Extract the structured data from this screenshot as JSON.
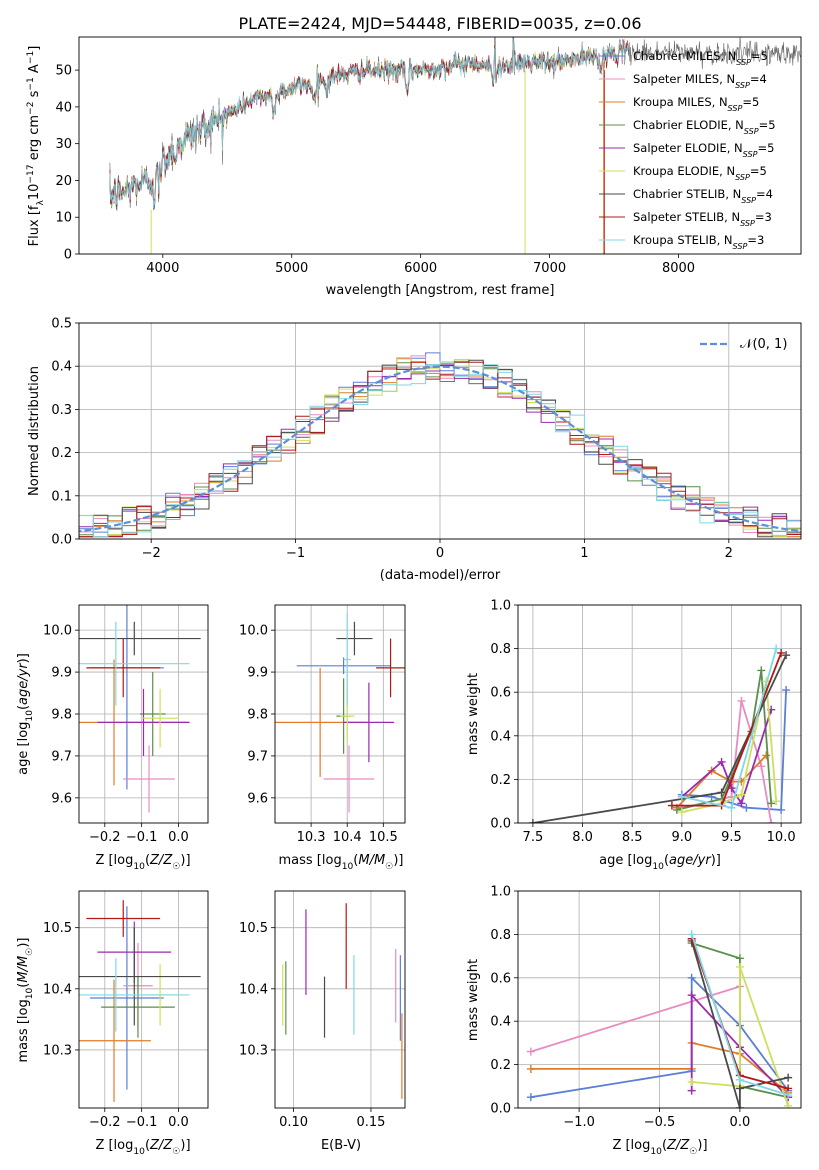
{
  "colors": {
    "Chabrier MILES": "#5b7fd6",
    "Salpeter MILES": "#e88cc0",
    "Kroupa MILES": "#e07b2a",
    "Chabrier ELODIE": "#5a8f4a",
    "Salpeter ELODIE": "#9a2bb0",
    "Kroupa ELODIE": "#cde05a",
    "Chabrier STELIB": "#4a4a4a",
    "Salpeter STELIB": "#b11818",
    "Kroupa STELIB": "#7fd8e6",
    "normal": "#5b8fd9",
    "grid": "#b0b0b0",
    "data": "#666666"
  },
  "chart_data": [
    {
      "id": "spectrum",
      "type": "line",
      "title": "PLATE=2424, MJD=54448, FIBERID=0035, z=0.06",
      "xlabel": "wavelength [Angstrom, rest frame]",
      "ylabel": "Flux [f_λ10^-17 erg cm^-2 s^-1 A^-1]",
      "xlim": [
        3350,
        8950
      ],
      "ylim": [
        0,
        59
      ],
      "xticks": [
        4000,
        5000,
        6000,
        7000,
        8000
      ],
      "yticks": [
        0,
        10,
        20,
        30,
        40,
        50
      ],
      "grid": false,
      "legend": "upper right",
      "continuum": {
        "x": [
          3600,
          3700,
          3800,
          3900,
          4000,
          4100,
          4200,
          4300,
          4400,
          4500,
          4600,
          4700,
          4800,
          4900,
          5000,
          5200,
          5400,
          5600,
          5800,
          6000,
          6200,
          6400,
          6600,
          6800,
          7000,
          7200,
          7400,
          7600
        ],
        "y": [
          16,
          17,
          19,
          20,
          25,
          30,
          32,
          34,
          36,
          38,
          40,
          42,
          43,
          44,
          45,
          47,
          49,
          50,
          50,
          50,
          51,
          52,
          51,
          52,
          52,
          53,
          54,
          55
        ]
      },
      "data_extent": [
        3590,
        8950
      ],
      "model_extent": [
        3590,
        7610
      ],
      "series": [
        {
          "name": "Chabrier MILES",
          "n_ssp": "5"
        },
        {
          "name": "Salpeter MILES",
          "n_ssp": "4"
        },
        {
          "name": "Kroupa MILES",
          "n_ssp": "5"
        },
        {
          "name": "Chabrier ELODIE",
          "n_ssp": "5"
        },
        {
          "name": "Salpeter ELODIE",
          "n_ssp": "5"
        },
        {
          "name": "Kroupa ELODIE",
          "n_ssp": "5"
        },
        {
          "name": "Chabrier STELIB",
          "n_ssp": "4"
        },
        {
          "name": "Salpeter STELIB",
          "n_ssp": "3"
        },
        {
          "name": "Kroupa STELIB",
          "n_ssp": "3"
        }
      ]
    },
    {
      "id": "residuals",
      "type": "step",
      "xlabel": "(data-model)/error",
      "ylabel": "Normed distribution",
      "xlim": [
        -2.5,
        2.5
      ],
      "ylim": [
        0,
        0.5
      ],
      "xticks": [
        -2,
        -1,
        0,
        1,
        2
      ],
      "yticks": [
        0.0,
        0.1,
        0.2,
        0.3,
        0.4,
        0.5
      ],
      "bin_width": 0.1,
      "grid": true,
      "legend": "upper right",
      "legend_label": "𝒩(0, 1)"
    },
    {
      "id": "age_vs_Z",
      "type": "errorbar",
      "xlabel": "Z [log10(Z/Z☉)]",
      "ylabel": "age [log10(age/yr)]",
      "xlim": [
        -0.27,
        0.08
      ],
      "ylim": [
        9.54,
        10.06
      ],
      "xticks": [
        -0.2,
        -0.1,
        0.0
      ],
      "yticks": [
        9.6,
        9.7,
        9.8,
        9.9,
        10.0
      ],
      "points": [
        {
          "series": "Chabrier MILES",
          "x": -0.14,
          "xerr": 0.1,
          "y": 9.91,
          "yerr": 0.29
        },
        {
          "series": "Salpeter MILES",
          "x": -0.08,
          "xerr": 0.07,
          "y": 9.645,
          "yerr": 0.08
        },
        {
          "series": "Kroupa MILES",
          "x": -0.175,
          "xerr": 0.2,
          "y": 9.78,
          "yerr": 0.15
        },
        {
          "series": "Chabrier ELODIE",
          "x": -0.07,
          "xerr": 0.035,
          "y": 9.8,
          "yerr": 0.1
        },
        {
          "series": "Salpeter ELODIE",
          "x": -0.095,
          "xerr": 0.125,
          "y": 9.78,
          "yerr": 0.08
        },
        {
          "series": "Kroupa ELODIE",
          "x": -0.05,
          "xerr": 0.05,
          "y": 9.79,
          "yerr": 0.07
        },
        {
          "series": "Chabrier STELIB",
          "x": -0.12,
          "xerr": 0.18,
          "y": 9.98,
          "yerr": 0.04
        },
        {
          "series": "Salpeter STELIB",
          "x": -0.15,
          "xerr": 0.1,
          "y": 9.91,
          "yerr": 0.07
        },
        {
          "series": "Kroupa STELIB",
          "x": -0.17,
          "xerr": 0.2,
          "y": 9.92,
          "yerr": 0.1
        }
      ]
    },
    {
      "id": "age_vs_mass",
      "type": "errorbar",
      "xlabel": "mass [log10(M/M☉)]",
      "ylabel": "",
      "xlim": [
        10.2,
        10.56
      ],
      "ylim": [
        9.54,
        10.06
      ],
      "xticks": [
        10.3,
        10.4,
        10.5
      ],
      "yticks": [
        9.6,
        9.7,
        9.8,
        9.9,
        10.0
      ],
      "points": [
        {
          "series": "Chabrier MILES",
          "x": 10.39,
          "xerr": 0.13,
          "y": 9.915,
          "yerr": 0.02
        },
        {
          "series": "Salpeter MILES",
          "x": 10.405,
          "xerr": 0.07,
          "y": 9.645,
          "yerr": 0.08
        },
        {
          "series": "Kroupa MILES",
          "x": 10.325,
          "xerr": 0.13,
          "y": 9.78,
          "yerr": 0.13
        },
        {
          "series": "Chabrier ELODIE",
          "x": 10.39,
          "xerr": 0.02,
          "y": 9.795,
          "yerr": 0.09
        },
        {
          "series": "Salpeter ELODIE",
          "x": 10.46,
          "xerr": 0.07,
          "y": 9.78,
          "yerr": 0.095
        },
        {
          "series": "Kroupa ELODIE",
          "x": 10.4,
          "xerr": 0.02,
          "y": 9.795,
          "yerr": 0.06
        },
        {
          "series": "Chabrier STELIB",
          "x": 10.42,
          "xerr": 0.05,
          "y": 9.98,
          "yerr": 0.04
        },
        {
          "series": "Salpeter STELIB",
          "x": 10.52,
          "xerr": 0.04,
          "y": 9.91,
          "yerr": 0.07
        },
        {
          "series": "Kroupa STELIB",
          "x": 10.4,
          "xerr": 0.01,
          "y": 9.93,
          "yerr": 0.11
        }
      ]
    },
    {
      "id": "weight_vs_age",
      "type": "line",
      "xlabel": "age [log10(age/yr)]",
      "ylabel": "mass weight",
      "xlim": [
        7.35,
        10.2
      ],
      "ylim": [
        0,
        1.0
      ],
      "xticks": [
        7.5,
        8.0,
        8.5,
        9.0,
        9.5,
        10.0
      ],
      "yticks": [
        0.0,
        0.2,
        0.4,
        0.6,
        0.8,
        1.0
      ],
      "grid": true,
      "series": [
        {
          "series": "Chabrier MILES",
          "x": [
            9.0,
            9.3,
            9.65,
            10.0,
            10.05
          ],
          "y": [
            0.13,
            0.12,
            0.07,
            0.06,
            0.61
          ]
        },
        {
          "series": "Salpeter MILES",
          "x": [
            9.0,
            9.5,
            9.6,
            9.8,
            9.9
          ],
          "y": [
            0.07,
            0.12,
            0.56,
            0.26,
            0.0
          ]
        },
        {
          "series": "Kroupa MILES",
          "x": [
            8.95,
            9.3,
            9.5,
            9.6,
            9.85
          ],
          "y": [
            0.07,
            0.24,
            0.19,
            0.19,
            0.31
          ]
        },
        {
          "series": "Chabrier ELODIE",
          "x": [
            8.95,
            9.4,
            9.7,
            9.8,
            9.9
          ],
          "y": [
            0.06,
            0.11,
            0.42,
            0.7,
            0.09
          ]
        },
        {
          "series": "Salpeter ELODIE",
          "x": [
            9.0,
            9.4,
            9.5,
            9.6,
            9.9
          ],
          "y": [
            0.12,
            0.28,
            0.16,
            0.09,
            0.52
          ]
        },
        {
          "series": "Kroupa ELODIE",
          "x": [
            9.0,
            9.4,
            9.6,
            9.85,
            9.95
          ],
          "y": [
            0.05,
            0.09,
            0.13,
            0.65,
            0.1
          ]
        },
        {
          "series": "Chabrier STELIB",
          "x": [
            7.5,
            9.4,
            10.05
          ],
          "y": [
            0.0,
            0.14,
            0.77
          ]
        },
        {
          "series": "Salpeter STELIB",
          "x": [
            8.9,
            9.4,
            10.0
          ],
          "y": [
            0.08,
            0.08,
            0.78
          ]
        },
        {
          "series": "Kroupa STELIB",
          "x": [
            9.0,
            9.5,
            9.95
          ],
          "y": [
            0.12,
            0.07,
            0.8
          ]
        }
      ]
    },
    {
      "id": "mass_vs_Z",
      "type": "errorbar",
      "xlabel": "Z [log10(Z/Z☉)]",
      "ylabel": "mass [log10(M/M☉)]",
      "xlim": [
        -0.27,
        0.08
      ],
      "ylim": [
        10.205,
        10.56
      ],
      "xticks": [
        -0.2,
        -0.1,
        0.0
      ],
      "yticks": [
        10.3,
        10.4,
        10.5
      ],
      "points": [
        {
          "series": "Chabrier MILES",
          "x": -0.14,
          "xerr": 0.1,
          "y": 10.385,
          "yerr": 0.15
        },
        {
          "series": "Salpeter MILES",
          "x": -0.11,
          "xerr": 0.04,
          "y": 10.405,
          "yerr": 0.07
        },
        {
          "series": "Kroupa MILES",
          "x": -0.175,
          "xerr": 0.1,
          "y": 10.315,
          "yerr": 0.1
        },
        {
          "series": "Chabrier ELODIE",
          "x": -0.11,
          "xerr": 0.1,
          "y": 10.37,
          "yerr": 0.05
        },
        {
          "series": "Salpeter ELODIE",
          "x": -0.12,
          "xerr": 0.1,
          "y": 10.46,
          "yerr": 0.05
        },
        {
          "series": "Kroupa ELODIE",
          "x": -0.05,
          "xerr": 0.05,
          "y": 10.39,
          "yerr": 0.05
        },
        {
          "series": "Chabrier STELIB",
          "x": -0.12,
          "xerr": 0.18,
          "y": 10.42,
          "yerr": 0.08
        },
        {
          "series": "Salpeter STELIB",
          "x": -0.15,
          "xerr": 0.1,
          "y": 10.515,
          "yerr": 0.03
        },
        {
          "series": "Kroupa STELIB",
          "x": -0.17,
          "xerr": 0.2,
          "y": 10.39,
          "yerr": 0.06
        }
      ]
    },
    {
      "id": "mass_vs_ebv",
      "type": "errorbar",
      "xlabel": "E(B-V)",
      "ylabel": "",
      "xlim": [
        0.088,
        0.172
      ],
      "ylim": [
        10.205,
        10.56
      ],
      "xticks": [
        0.1,
        0.15
      ],
      "yticks": [
        10.3,
        10.4,
        10.5
      ],
      "points": [
        {
          "series": "Chabrier MILES",
          "x": 0.169,
          "xerr": 0,
          "y": 10.385,
          "yerr": 0.07
        },
        {
          "series": "Salpeter MILES",
          "x": 0.166,
          "xerr": 0,
          "y": 10.405,
          "yerr": 0.06
        },
        {
          "series": "Kroupa MILES",
          "x": 0.17,
          "xerr": 0,
          "y": 10.29,
          "yerr": 0.07
        },
        {
          "series": "Chabrier ELODIE",
          "x": 0.095,
          "xerr": 0,
          "y": 10.385,
          "yerr": 0.06
        },
        {
          "series": "Salpeter ELODIE",
          "x": 0.108,
          "xerr": 0,
          "y": 10.46,
          "yerr": 0.07
        },
        {
          "series": "Kroupa ELODIE",
          "x": 0.093,
          "xerr": 0,
          "y": 10.39,
          "yerr": 0.05
        },
        {
          "series": "Chabrier STELIB",
          "x": 0.12,
          "xerr": 0,
          "y": 10.37,
          "yerr": 0.05
        },
        {
          "series": "Salpeter STELIB",
          "x": 0.134,
          "xerr": 0,
          "y": 10.47,
          "yerr": 0.07
        },
        {
          "series": "Kroupa STELIB",
          "x": 0.139,
          "xerr": 0,
          "y": 10.39,
          "yerr": 0.065
        }
      ]
    },
    {
      "id": "weight_vs_Z",
      "type": "line",
      "xlabel": "Z [log10(Z/Z☉)]",
      "ylabel": "mass weight",
      "xlim": [
        -1.38,
        0.38
      ],
      "ylim": [
        0,
        1.0
      ],
      "xticks": [
        -1.0,
        -0.5,
        0.0
      ],
      "yticks": [
        0.0,
        0.2,
        0.4,
        0.6,
        0.8,
        1.0
      ],
      "grid": true,
      "series": [
        {
          "series": "Chabrier MILES",
          "x": [
            -1.3,
            -0.3,
            -0.3,
            0.0,
            0.3
          ],
          "y": [
            0.05,
            0.17,
            0.6,
            0.38,
            0.08
          ]
        },
        {
          "series": "Salpeter MILES",
          "x": [
            -1.3,
            0.0
          ],
          "y": [
            0.26,
            0.56
          ]
        },
        {
          "series": "Kroupa MILES",
          "x": [
            -1.3,
            -0.3,
            -0.3,
            0.0,
            0.3
          ],
          "y": [
            0.18,
            0.18,
            0.3,
            0.25,
            0.07
          ]
        },
        {
          "series": "Chabrier ELODIE",
          "x": [
            -0.3,
            0.0,
            0.0,
            0.3
          ],
          "y": [
            0.76,
            0.69,
            0.1,
            0.05
          ]
        },
        {
          "series": "Salpeter ELODIE",
          "x": [
            -0.3,
            -0.3,
            0.0,
            0.3
          ],
          "y": [
            0.08,
            0.52,
            0.28,
            0.05
          ]
        },
        {
          "series": "Kroupa ELODIE",
          "x": [
            -0.3,
            0.0,
            0.0,
            0.3
          ],
          "y": [
            0.12,
            0.1,
            0.65,
            0.01
          ]
        },
        {
          "series": "Chabrier STELIB",
          "x": [
            -0.3,
            0.0,
            0.0,
            0.3
          ],
          "y": [
            0.77,
            0.0,
            0.09,
            0.14
          ]
        },
        {
          "series": "Salpeter STELIB",
          "x": [
            -0.3,
            0.0,
            0.3
          ],
          "y": [
            0.78,
            0.15,
            0.09
          ]
        },
        {
          "series": "Kroupa STELIB",
          "x": [
            -0.3,
            0.0,
            0.3
          ],
          "y": [
            0.8,
            0.13,
            0.06
          ]
        }
      ]
    }
  ]
}
